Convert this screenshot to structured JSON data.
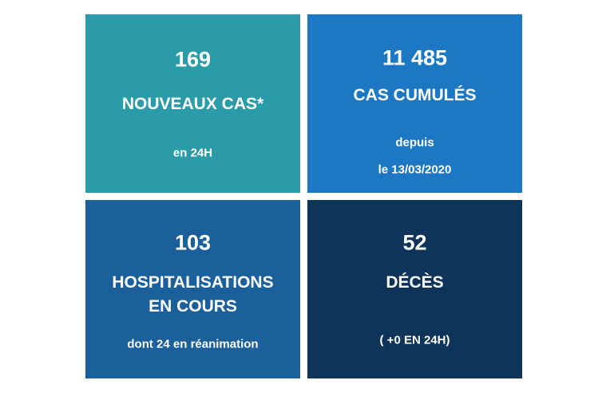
{
  "colors": {
    "teal": "#2a9ba8",
    "blue": "#1d78c4",
    "mid_blue": "#1b5f9b",
    "navy": "#0e3459"
  },
  "tiles": [
    {
      "value": "169",
      "title": "NOUVEAUX CAS*",
      "sub": "en 24H"
    },
    {
      "value": "11 485",
      "title": "CAS CUMULÉS",
      "sub1": "depuis",
      "sub2": "le 13/03/2020"
    },
    {
      "value": "103",
      "title1": "HOSPITALISATIONS",
      "title2": "EN COURS",
      "sub": "dont 24 en réanimation"
    },
    {
      "value": "52",
      "title": "DÉCÈS",
      "sub": "( +0 EN 24H)"
    }
  ]
}
